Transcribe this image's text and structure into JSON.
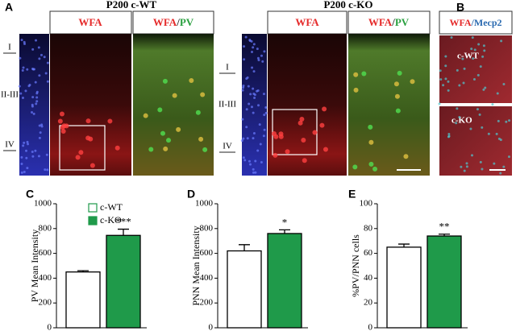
{
  "panel_labels": [
    "A",
    "B",
    "C",
    "D",
    "E"
  ],
  "headers": {
    "wt": "P200 c-WT",
    "ko": "P200 c-KO"
  },
  "columns": {
    "wfa": "WFA",
    "merge_pv": [
      "WFA",
      "/",
      "PV"
    ],
    "merge_mecp2": [
      "WFA",
      "/",
      "Mecp2"
    ]
  },
  "layers": [
    "I",
    "II-III",
    "IV"
  ],
  "b_labels": [
    "c-WT",
    "c-KO"
  ],
  "chart_data": [
    {
      "type": "bar",
      "y_label": "PV Mean Intensity",
      "categories": [
        null
      ],
      "series": [
        {
          "name": "c-WT",
          "color": "#ffffff",
          "values": [
            450
          ],
          "errors": [
            10
          ]
        },
        {
          "name": "c-KO",
          "color": "#1f9a4a",
          "values": [
            745
          ],
          "errors": [
            50
          ]
        }
      ],
      "annotations": [
        "***"
      ],
      "ylim": [
        0,
        1000
      ],
      "yticks": [
        0,
        200,
        400,
        600,
        800,
        1000
      ],
      "legend": "upper left"
    },
    {
      "type": "bar",
      "y_label": "PNN Mean Intensity",
      "categories": [
        null
      ],
      "series": [
        {
          "color": "#ffffff",
          "values": [
            620
          ],
          "errors": [
            50
          ]
        },
        {
          "color": "#1f9a4a",
          "values": [
            760
          ],
          "errors": [
            30
          ]
        }
      ],
      "annotations": [
        "*"
      ],
      "ylim": [
        0,
        1000
      ],
      "yticks": [
        0,
        200,
        400,
        600,
        800,
        1000
      ]
    },
    {
      "type": "bar",
      "y_label": "%PV/PNN cells",
      "categories": [
        null
      ],
      "series": [
        {
          "color": "#ffffff",
          "values": [
            65
          ],
          "errors": [
            2.5
          ]
        },
        {
          "color": "#1f9a4a",
          "values": [
            74
          ],
          "errors": [
            1.5
          ]
        }
      ],
      "annotations": [
        "**"
      ],
      "ylim": [
        0,
        100
      ],
      "yticks": [
        0,
        20,
        40,
        60,
        80,
        100
      ]
    }
  ]
}
